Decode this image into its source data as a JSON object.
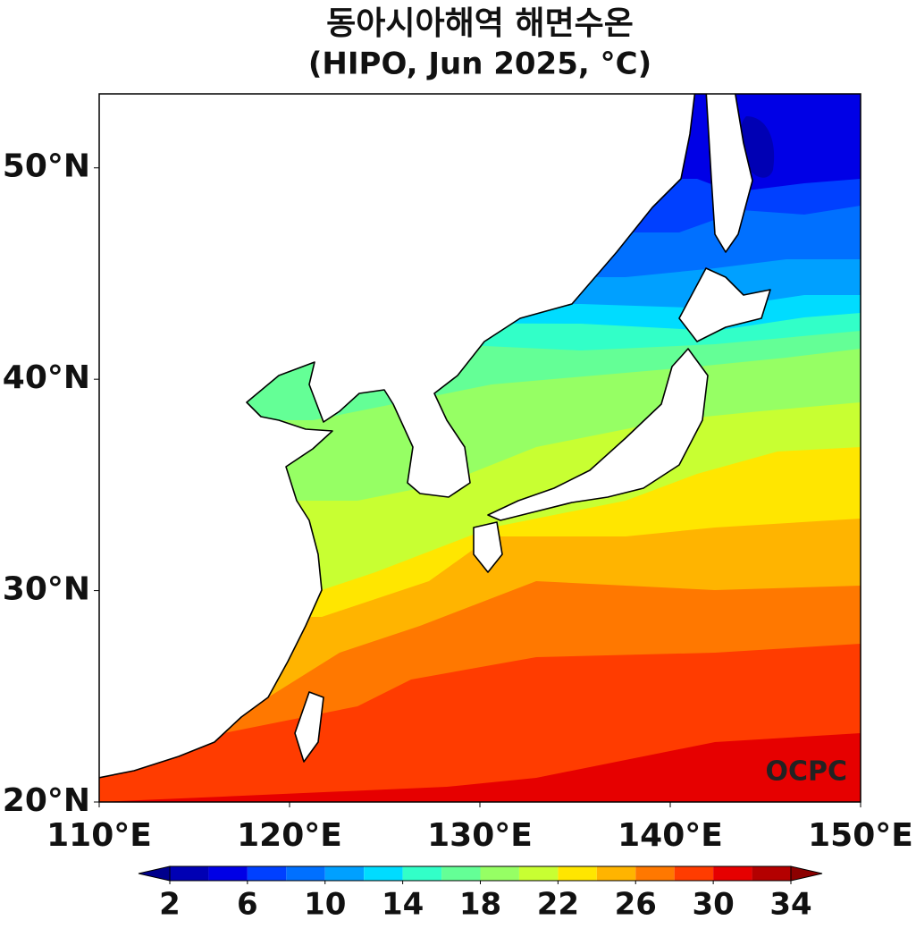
{
  "title": "동아시아해역 해면수온",
  "subtitle": "(HIPO, Jun 2025, °C)",
  "credit": "OCPC",
  "map": {
    "lonlim": [
      110,
      150
    ],
    "latlim": [
      20,
      53.5
    ],
    "lon_ticks": [
      {
        "value": 110,
        "label": "110°E"
      },
      {
        "value": 120,
        "label": "120°E"
      },
      {
        "value": 130,
        "label": "130°E"
      },
      {
        "value": 140,
        "label": "140°E"
      },
      {
        "value": 150,
        "label": "150°E"
      }
    ],
    "lat_ticks": [
      {
        "value": 20,
        "label": "20°N"
      },
      {
        "value": 30,
        "label": "30°N"
      },
      {
        "value": 40,
        "label": "40°N"
      },
      {
        "value": 50,
        "label": "50°N"
      }
    ]
  },
  "colorbar": {
    "levels": [
      2,
      4,
      6,
      8,
      10,
      12,
      14,
      16,
      18,
      20,
      22,
      24,
      26,
      28,
      30,
      32,
      34
    ],
    "ticks": [
      2,
      6,
      10,
      14,
      18,
      22,
      26,
      30,
      34
    ],
    "colors": [
      "#00008c",
      "#0000b4",
      "#0000e6",
      "#0040ff",
      "#0070ff",
      "#00a0ff",
      "#00dcff",
      "#32ffc8",
      "#64ff96",
      "#96ff64",
      "#c8ff32",
      "#ffe600",
      "#ffb400",
      "#ff7800",
      "#ff3c00",
      "#e60000",
      "#b40000",
      "#8c0000"
    ]
  }
}
